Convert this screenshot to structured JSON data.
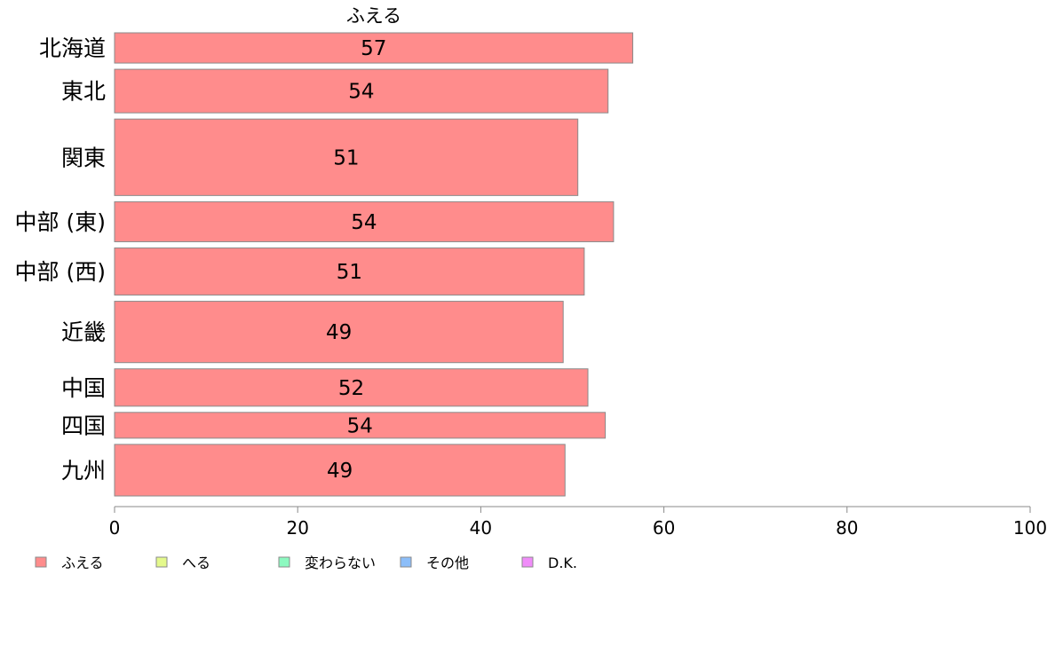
{
  "chart_data": {
    "type": "bar",
    "orientation": "horizontal",
    "categories": [
      "北海道",
      "東北",
      "関東",
      "中部 (東)",
      "中部 (西)",
      "近畿",
      "中国",
      "四国",
      "九州"
    ],
    "band_weights": [
      34,
      49,
      86,
      45,
      53,
      69,
      42,
      29,
      58
    ],
    "series": [
      {
        "name": "ふえる",
        "color": "#ff8c8c",
        "values": [
          56.6,
          53.9,
          50.6,
          54.5,
          51.3,
          49.0,
          51.7,
          53.6,
          49.2
        ],
        "labels": [
          "57",
          "54",
          "51",
          "54",
          "51",
          "49",
          "52",
          "54",
          "49"
        ]
      }
    ],
    "series_title": "ふえる",
    "xlim": [
      0,
      100
    ],
    "xticks": [
      0,
      20,
      40,
      60,
      80,
      100
    ],
    "grid": false,
    "legend_position": "bottom-left",
    "legend": [
      {
        "label": "ふえる",
        "color": "#ff8c8c"
      },
      {
        "label": "へる",
        "color": "#e4f98c"
      },
      {
        "label": "変わらない",
        "color": "#8cf9c0"
      },
      {
        "label": "その他",
        "color": "#8cbef9"
      },
      {
        "label": "D.K.",
        "color": "#f08cf9"
      }
    ]
  }
}
